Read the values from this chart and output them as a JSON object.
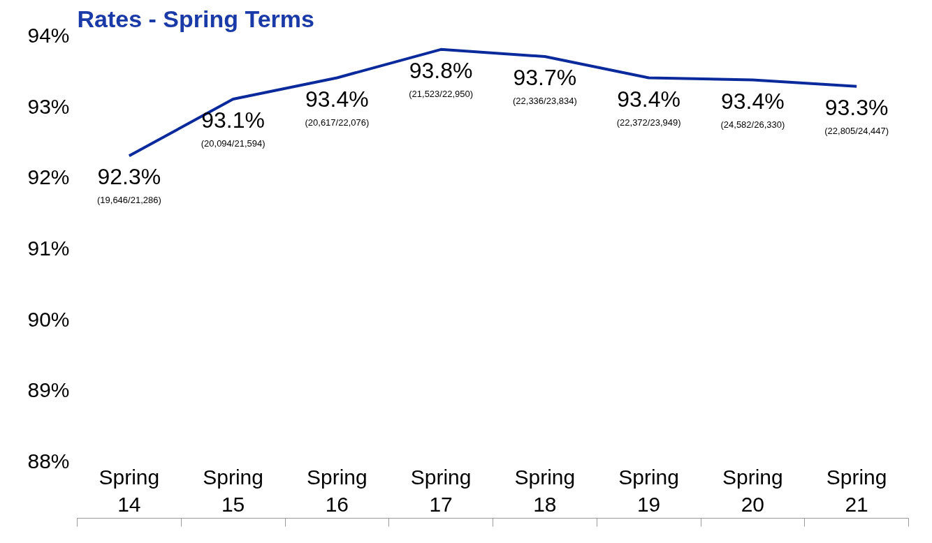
{
  "chart_data": {
    "type": "line",
    "title": "Rates - Spring Terms",
    "categories": [
      "Spring 14",
      "Spring 15",
      "Spring 16",
      "Spring 17",
      "Spring 18",
      "Spring 19",
      "Spring 20",
      "Spring 21"
    ],
    "series": [
      {
        "color": "#0a2a9c",
        "values": [
          92.3,
          93.1,
          93.4,
          93.8,
          93.7,
          93.4,
          93.37,
          93.28
        ],
        "value_labels": [
          "92.3%",
          "93.1%",
          "93.4%",
          "93.8%",
          "93.7%",
          "93.4%",
          "93.4%",
          "93.3%"
        ]
      }
    ],
    "annotations": [
      "(19,646/21,286)",
      "(20,094/21,594)",
      "(20,617/22,076)",
      "(21,523/22,950)",
      "(22,336/23,834)",
      "(22,372/23,949)",
      "(24,582/26,330)",
      "(22,805/24,447)"
    ],
    "ylim": [
      88,
      94
    ],
    "yticks": [
      {
        "value": 88,
        "label": "88%"
      },
      {
        "value": 89,
        "label": "89%"
      },
      {
        "value": 90,
        "label": "90%"
      },
      {
        "value": 91,
        "label": "91%"
      },
      {
        "value": 92,
        "label": "92%"
      },
      {
        "value": 93,
        "label": "93%"
      },
      {
        "value": 94,
        "label": "94%"
      }
    ],
    "grid": false,
    "marker": "none",
    "line_style": "solid"
  }
}
